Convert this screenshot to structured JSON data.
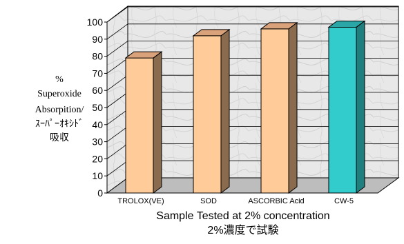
{
  "chart_data": {
    "type": "bar",
    "style": "3d",
    "categories": [
      "TROLOX(VE)",
      "SOD",
      "ASCORBIC Acid",
      "CW-5"
    ],
    "values": [
      79,
      92,
      96,
      97
    ],
    "bar_colors": [
      "#FFCC99",
      "#FFCC99",
      "#FFCC99",
      "#33CCCC"
    ],
    "bar_side_colors": [
      "#8A6B4E",
      "#8A6B4E",
      "#8A6B4E",
      "#1F7F7F"
    ],
    "bar_top_colors": [
      "#D9A27A",
      "#D9A27A",
      "#D9A27A",
      "#2AA6A6"
    ],
    "ylim": [
      0,
      100
    ],
    "yticks": [
      0,
      10,
      20,
      30,
      40,
      50,
      60,
      70,
      80,
      90,
      100
    ],
    "ylabel_lines": [
      "%",
      "Superoxide",
      "Absorpition/",
      "ｽｰﾊﾟｰｵｷｼﾄﾞ",
      "吸収"
    ],
    "xlabel_lines": [
      "Sample Tested at 2% concentration",
      "2%濃度で試験"
    ],
    "wall_color": "#E6E6E6",
    "floor_color": "#BDBDBD",
    "grid": true
  }
}
